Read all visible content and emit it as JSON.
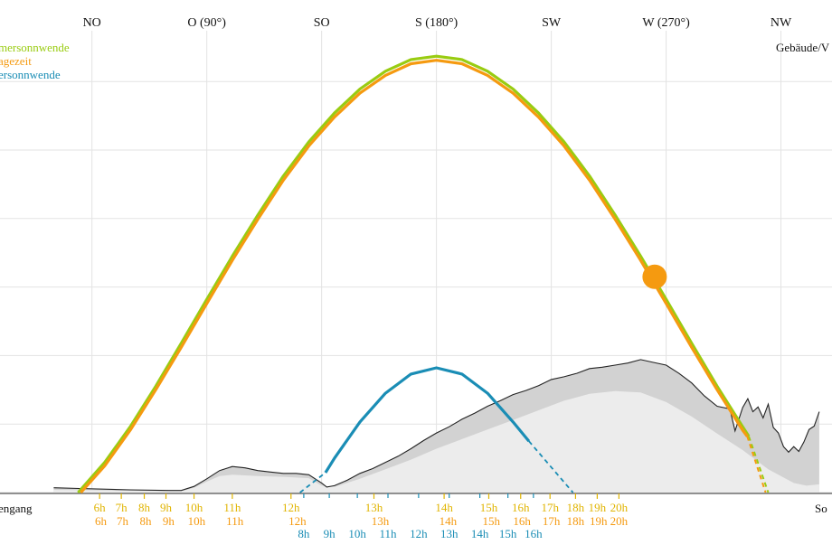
{
  "chart_data": {
    "type": "line",
    "title": "",
    "xlabel": "",
    "ylabel": "",
    "x_unit": "azimuth (degrees)",
    "direction_ticks": [
      {
        "label": "NO",
        "azimuth": 45
      },
      {
        "label": "O (90°)",
        "azimuth": 90
      },
      {
        "label": "SO",
        "azimuth": 135
      },
      {
        "label": "S (180°)",
        "azimuth": 180
      },
      {
        "label": "SW",
        "azimuth": 225
      },
      {
        "label": "W (270°)",
        "azimuth": 270
      },
      {
        "label": "NW",
        "azimuth": 315
      }
    ],
    "xlim": [
      30,
      330
    ],
    "ylim": [
      0,
      65
    ],
    "y_grid_step": 10,
    "grid": true,
    "legend_position": "top-left",
    "legend": [
      {
        "text": "mersonnwende",
        "color": "#99cc11"
      },
      {
        "text": "agezeit",
        "color": "#f59a10"
      },
      {
        "text": "ersonnwende",
        "color": "#1a8db5"
      }
    ],
    "left_edge_label": "engang",
    "right_edge_label": "So",
    "top_right_label": "Gebäude/V",
    "series": [
      {
        "name": "mersonnwende",
        "color": "#99cc11",
        "x": [
          39.6,
          50,
          60,
          70,
          80,
          90,
          100,
          110,
          120,
          130,
          140,
          150,
          160,
          170,
          180,
          190,
          200,
          210,
          220,
          230,
          240,
          250,
          260,
          270,
          280,
          290,
          300,
          302.4
        ],
        "y": [
          0,
          4.4,
          9.6,
          15.5,
          21.8,
          28.2,
          34.5,
          40.5,
          46.2,
          51.2,
          55.4,
          58.9,
          61.5,
          63.2,
          63.7,
          63.2,
          61.5,
          58.9,
          55.4,
          51.2,
          46.2,
          40.5,
          34.5,
          28.2,
          21.8,
          15.5,
          9.6,
          8.2
        ],
        "extension_dashed": {
          "x": [
            302.4,
            310
          ],
          "y": [
            8.2,
            0
          ]
        }
      },
      {
        "name": "agezeit",
        "color": "#f59a10",
        "x": [
          40.6,
          50,
          60,
          70,
          80,
          90,
          100,
          110,
          120,
          130,
          140,
          150,
          160,
          170,
          180,
          190,
          200,
          210,
          220,
          230,
          240,
          250,
          260,
          270,
          280,
          290,
          300,
          301.8
        ],
        "y": [
          0,
          3.9,
          9.1,
          15.0,
          21.2,
          27.6,
          33.9,
          39.9,
          45.6,
          50.6,
          54.8,
          58.3,
          60.9,
          62.6,
          63.1,
          62.6,
          60.9,
          58.3,
          54.8,
          50.6,
          45.6,
          39.9,
          33.9,
          27.6,
          21.2,
          15.0,
          9.1,
          8.2
        ],
        "extension_dashed": {
          "x": [
            301.8,
            309
          ],
          "y": [
            8.2,
            0
          ]
        }
      },
      {
        "name": "ersonnwende",
        "color": "#1a8db5",
        "x": [
          136.5,
          140,
          150,
          160,
          170,
          180,
          190,
          200,
          210,
          216.2
        ],
        "y": [
          2.9,
          5.0,
          10.3,
          14.5,
          17.3,
          18.2,
          17.3,
          14.5,
          10.3,
          7.5
        ],
        "morning_dashed": {
          "x": [
            126.5,
            136.5
          ],
          "y": [
            0,
            2.9
          ]
        },
        "evening_dashed": {
          "x": [
            216.2,
            233.5
          ],
          "y": [
            7.5,
            0
          ]
        }
      }
    ],
    "current_sun": {
      "azimuth": 265.5,
      "elevation": 31.5,
      "color": "#f59a10"
    },
    "horizon_profile": {
      "x": [
        30,
        40,
        60,
        75,
        80,
        85,
        90,
        95,
        100,
        105,
        110,
        115,
        120,
        125,
        130,
        135,
        137,
        140,
        145,
        150,
        155,
        160,
        165,
        170,
        175,
        180,
        185,
        190,
        195,
        200,
        205,
        210,
        215,
        220,
        225,
        230,
        235,
        240,
        245,
        250,
        255,
        260,
        265,
        270,
        275,
        280,
        285,
        290,
        295,
        297,
        300,
        302,
        304,
        306,
        308,
        310,
        312,
        314,
        316,
        318,
        320,
        322,
        324,
        326,
        328,
        330
      ],
      "y": [
        0.7,
        0.6,
        0.4,
        0.3,
        0.3,
        0.9,
        2.0,
        3.2,
        3.8,
        3.6,
        3.2,
        3.0,
        2.8,
        2.8,
        2.6,
        1.4,
        0.8,
        1.0,
        1.8,
        2.8,
        3.5,
        4.4,
        5.3,
        6.4,
        7.6,
        8.7,
        9.6,
        10.7,
        11.6,
        12.6,
        13.4,
        14.3,
        14.9,
        15.6,
        16.5,
        16.9,
        17.4,
        18.1,
        18.3,
        18.6,
        18.9,
        19.4,
        19.0,
        18.6,
        17.4,
        16.0,
        14.1,
        12.6,
        12.2,
        9.0,
        12.4,
        13.7,
        11.8,
        12.5,
        10.9,
        12.9,
        9.5,
        8.7,
        6.7,
        5.9,
        6.7,
        6.0,
        7.4,
        9.2,
        9.7,
        11.8
      ]
    },
    "lower_shadow_profile": {
      "x": [
        30,
        80,
        85,
        90,
        95,
        100,
        110,
        120,
        130,
        135,
        140,
        150,
        160,
        170,
        180,
        190,
        200,
        210,
        220,
        230,
        240,
        250,
        260,
        270,
        280,
        290,
        300,
        310,
        320,
        325,
        330
      ],
      "y": [
        0.4,
        0.2,
        0.7,
        1.6,
        2.4,
        2.6,
        2.4,
        2.3,
        2.1,
        1.0,
        0.8,
        2.0,
        3.4,
        4.8,
        6.4,
        7.8,
        9.2,
        10.6,
        12.0,
        13.4,
        14.4,
        14.8,
        14.6,
        13.2,
        11.1,
        8.6,
        6.2,
        3.4,
        1.4,
        1.0,
        1.2
      ]
    },
    "hour_rows": [
      {
        "color": "#e0b400",
        "labels": [
          {
            "text": "6h",
            "azimuth": 48
          },
          {
            "text": "7h",
            "azimuth": 56.5
          },
          {
            "text": "8h",
            "azimuth": 65.5
          },
          {
            "text": "9h",
            "azimuth": 74
          },
          {
            "text": "10h",
            "azimuth": 85
          },
          {
            "text": "11h",
            "azimuth": 100
          },
          {
            "text": "12h",
            "azimuth": 123
          },
          {
            "text": "13h",
            "azimuth": 155.5
          },
          {
            "text": "14h",
            "azimuth": 183
          },
          {
            "text": "15h",
            "azimuth": 200.5
          },
          {
            "text": "16h",
            "azimuth": 213
          },
          {
            "text": "17h",
            "azimuth": 224.5
          },
          {
            "text": "18h",
            "azimuth": 234.5
          },
          {
            "text": "19h",
            "azimuth": 243
          },
          {
            "text": "20h",
            "azimuth": 251.5
          }
        ]
      },
      {
        "color": "#f59a10",
        "labels": [
          {
            "text": "6h",
            "azimuth": 48.5
          },
          {
            "text": "7h",
            "azimuth": 57
          },
          {
            "text": "8h",
            "azimuth": 66
          },
          {
            "text": "9h",
            "azimuth": 75
          },
          {
            "text": "10h",
            "azimuth": 86
          },
          {
            "text": "11h",
            "azimuth": 101
          },
          {
            "text": "12h",
            "azimuth": 125.5
          },
          {
            "text": "13h",
            "azimuth": 158
          },
          {
            "text": "14h",
            "azimuth": 184.5
          },
          {
            "text": "15h",
            "azimuth": 201.5
          },
          {
            "text": "16h",
            "azimuth": 213.5
          },
          {
            "text": "17h",
            "azimuth": 225
          },
          {
            "text": "18h",
            "azimuth": 234.5
          },
          {
            "text": "19h",
            "azimuth": 243.5
          },
          {
            "text": "20h",
            "azimuth": 251.5
          }
        ]
      },
      {
        "color": "#1a8db5",
        "labels": [
          {
            "text": "8h",
            "azimuth": 128
          },
          {
            "text": "9h",
            "azimuth": 138
          },
          {
            "text": "10h",
            "azimuth": 149
          },
          {
            "text": "11h",
            "azimuth": 161
          },
          {
            "text": "12h",
            "azimuth": 173
          },
          {
            "text": "13h",
            "azimuth": 185
          },
          {
            "text": "14h",
            "azimuth": 197
          },
          {
            "text": "15h",
            "azimuth": 208
          },
          {
            "text": "16h",
            "azimuth": 218
          }
        ]
      }
    ]
  }
}
